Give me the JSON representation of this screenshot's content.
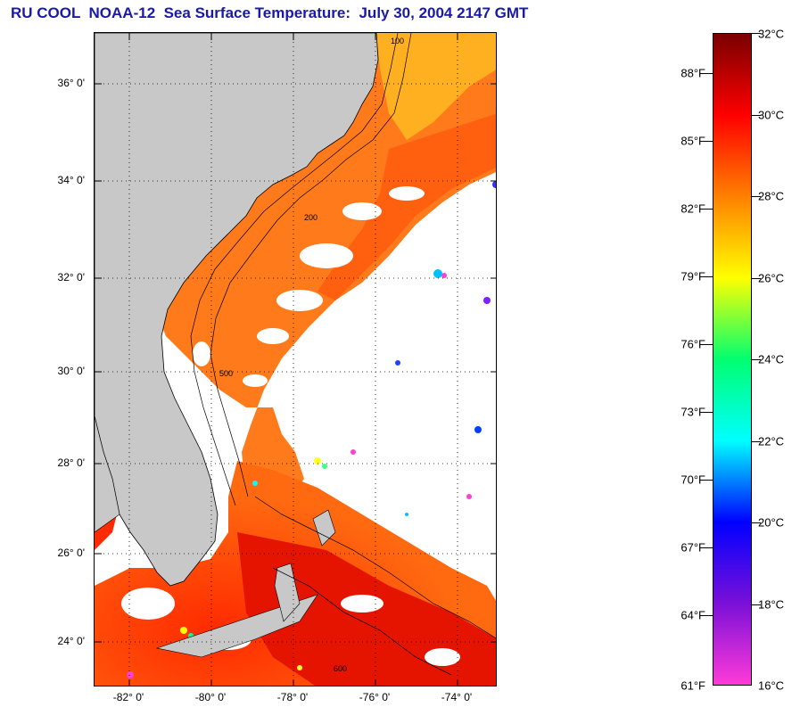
{
  "header": {
    "title": "RU COOL  NOAA-12  Sea Surface Temperature:  July 30, 2004 2147 GMT"
  },
  "map": {
    "latitude_labels": [
      "36° 0'",
      "34° 0'",
      "32° 0'",
      "30° 0'",
      "28° 0'",
      "26° 0'",
      "24° 0'"
    ],
    "longitude_labels": [
      "-82° 0'",
      "-80° 0'",
      "-78° 0'",
      "-76° 0'",
      "-74° 0'"
    ],
    "contour_labels": [
      "100",
      "200",
      "500",
      "600"
    ],
    "colors": {
      "land": "#c8c8c8",
      "no_data": "#ffffff",
      "grid": "#000000"
    }
  },
  "colorbar": {
    "fahrenheit_labels": [
      "88°F",
      "85°F",
      "82°F",
      "79°F",
      "76°F",
      "73°F",
      "70°F",
      "67°F",
      "64°F",
      "61°F"
    ],
    "celsius_labels": [
      "32°C",
      "30°C",
      "28°C",
      "26°C",
      "24°C",
      "22°C",
      "20°C",
      "18°C",
      "16°C"
    ],
    "range_celsius": [
      16,
      32
    ],
    "colors": [
      "#ff3bd8",
      "#7a10d8",
      "#0000ff",
      "#00ffff",
      "#00ff70",
      "#ffff00",
      "#ff8000",
      "#ff0000",
      "#7a0000"
    ]
  }
}
